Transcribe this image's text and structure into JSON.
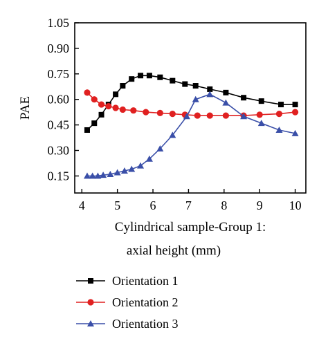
{
  "chart_data": {
    "type": "line",
    "xlabel_line1": "Cylindrical sample-Group 1:",
    "xlabel_line2": "axial height (mm)",
    "ylabel": "PAE",
    "xlim": [
      3.8,
      10.3
    ],
    "ylim": [
      0.05,
      1.05
    ],
    "xticks": [
      4,
      5,
      6,
      7,
      8,
      9,
      10
    ],
    "yticks": [
      0.15,
      0.3,
      0.45,
      0.6,
      0.75,
      0.9,
      1.05
    ],
    "ytick_labels": [
      "0.15",
      "0.30",
      "0.45",
      "0.60",
      "0.75",
      "0.90",
      "1.05"
    ],
    "grid": false,
    "legend_position": "below",
    "series": [
      {
        "name": "Orientation 1",
        "color": "#000000",
        "marker": "square",
        "points": [
          [
            4.15,
            0.42
          ],
          [
            4.35,
            0.46
          ],
          [
            4.55,
            0.51
          ],
          [
            4.75,
            0.57
          ],
          [
            4.95,
            0.63
          ],
          [
            5.15,
            0.68
          ],
          [
            5.4,
            0.72
          ],
          [
            5.65,
            0.74
          ],
          [
            5.9,
            0.74
          ],
          [
            6.2,
            0.73
          ],
          [
            6.55,
            0.71
          ],
          [
            6.9,
            0.69
          ],
          [
            7.2,
            0.68
          ],
          [
            7.6,
            0.66
          ],
          [
            8.05,
            0.64
          ],
          [
            8.55,
            0.61
          ],
          [
            9.05,
            0.59
          ],
          [
            9.6,
            0.57
          ],
          [
            10.0,
            0.57
          ]
        ]
      },
      {
        "name": "Orientation 2",
        "color": "#e02020",
        "marker": "circle",
        "points": [
          [
            4.15,
            0.64
          ],
          [
            4.35,
            0.6
          ],
          [
            4.55,
            0.57
          ],
          [
            4.75,
            0.56
          ],
          [
            4.95,
            0.55
          ],
          [
            5.15,
            0.54
          ],
          [
            5.45,
            0.535
          ],
          [
            5.8,
            0.525
          ],
          [
            6.2,
            0.52
          ],
          [
            6.55,
            0.515
          ],
          [
            6.9,
            0.51
          ],
          [
            7.25,
            0.505
          ],
          [
            7.6,
            0.505
          ],
          [
            8.05,
            0.505
          ],
          [
            8.55,
            0.505
          ],
          [
            9.0,
            0.51
          ],
          [
            9.55,
            0.515
          ],
          [
            10.0,
            0.525
          ]
        ]
      },
      {
        "name": "Orientation 3",
        "color": "#3a4fa8",
        "marker": "triangle",
        "points": [
          [
            4.15,
            0.15
          ],
          [
            4.3,
            0.15
          ],
          [
            4.45,
            0.15
          ],
          [
            4.6,
            0.155
          ],
          [
            4.8,
            0.16
          ],
          [
            5.0,
            0.17
          ],
          [
            5.2,
            0.18
          ],
          [
            5.4,
            0.19
          ],
          [
            5.65,
            0.21
          ],
          [
            5.9,
            0.25
          ],
          [
            6.2,
            0.31
          ],
          [
            6.55,
            0.39
          ],
          [
            6.95,
            0.5
          ],
          [
            7.2,
            0.6
          ],
          [
            7.6,
            0.63
          ],
          [
            8.05,
            0.58
          ],
          [
            8.55,
            0.5
          ],
          [
            9.05,
            0.46
          ],
          [
            9.55,
            0.42
          ],
          [
            10.0,
            0.4
          ]
        ]
      }
    ]
  }
}
